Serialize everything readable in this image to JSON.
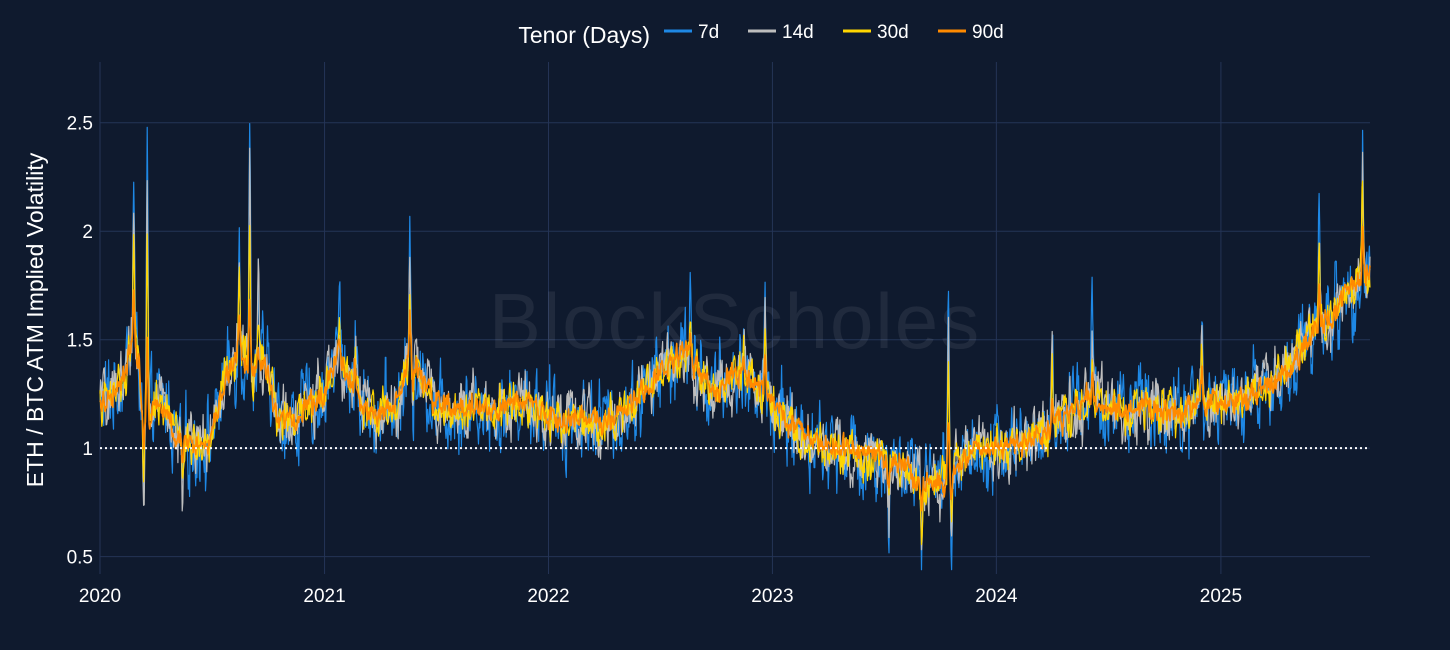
{
  "chart_data": {
    "type": "line",
    "ylabel": "ETH / BTC ATM Implied Volatility",
    "xlabel": "",
    "legend": {
      "title": "Tenor (Days)",
      "placement": "top-center",
      "orientation": "horizontal"
    },
    "watermark": "BlockScholes",
    "grid": true,
    "xlim": [
      "2020-01-01",
      "2025-09-01"
    ],
    "ylim": [
      0.42,
      2.78
    ],
    "x_ticks": [
      {
        "value": "2020-01-01",
        "label": "2020"
      },
      {
        "value": "2021-01-01",
        "label": "2021"
      },
      {
        "value": "2022-01-01",
        "label": "2022"
      },
      {
        "value": "2023-01-01",
        "label": "2023"
      },
      {
        "value": "2024-01-01",
        "label": "2024"
      },
      {
        "value": "2025-01-01",
        "label": "2025"
      }
    ],
    "y_ticks": [
      {
        "value": 0.5,
        "label": "0.5"
      },
      {
        "value": 1.0,
        "label": "1"
      },
      {
        "value": 1.5,
        "label": "1.5"
      },
      {
        "value": 2.0,
        "label": "2"
      },
      {
        "value": 2.5,
        "label": "2.5"
      }
    ],
    "reference_line": {
      "y": 1.0,
      "style": "dotted",
      "color": "#ffffff"
    },
    "series_colors": {
      "7d": "#1e88e5",
      "14d": "#bdbdbd",
      "30d": "#ffd600",
      "90d": "#ff8a00"
    },
    "series": [
      {
        "name": "7d",
        "color": "#1e88e5",
        "noise": 0.115,
        "spike_scale": 1.0
      },
      {
        "name": "14d",
        "color": "#bdbdbd",
        "noise": 0.085,
        "spike_scale": 0.85
      },
      {
        "name": "30d",
        "color": "#ffd600",
        "noise": 0.06,
        "spike_scale": 0.6
      },
      {
        "name": "90d",
        "color": "#ff8a00",
        "noise": 0.035,
        "spike_scale": 0.3
      }
    ],
    "baseline_points": [
      [
        "2020-01-01",
        1.2
      ],
      [
        "2020-01-20",
        1.25
      ],
      [
        "2020-02-10",
        1.35
      ],
      [
        "2020-02-25",
        1.5
      ],
      [
        "2020-03-05",
        1.38
      ],
      [
        "2020-03-15",
        1.1
      ],
      [
        "2020-04-01",
        1.22
      ],
      [
        "2020-04-20",
        1.2
      ],
      [
        "2020-05-01",
        1.05
      ],
      [
        "2020-06-01",
        1.0
      ],
      [
        "2020-07-01",
        1.05
      ],
      [
        "2020-07-20",
        1.3
      ],
      [
        "2020-08-15",
        1.45
      ],
      [
        "2020-09-05",
        1.35
      ],
      [
        "2020-09-25",
        1.4
      ],
      [
        "2020-10-15",
        1.15
      ],
      [
        "2020-11-15",
        1.12
      ],
      [
        "2020-12-01",
        1.2
      ],
      [
        "2021-01-01",
        1.25
      ],
      [
        "2021-01-20",
        1.45
      ],
      [
        "2021-02-15",
        1.3
      ],
      [
        "2021-03-01",
        1.2
      ],
      [
        "2021-04-01",
        1.15
      ],
      [
        "2021-05-01",
        1.2
      ],
      [
        "2021-05-20",
        1.45
      ],
      [
        "2021-06-05",
        1.35
      ],
      [
        "2021-07-01",
        1.2
      ],
      [
        "2021-08-01",
        1.18
      ],
      [
        "2021-09-01",
        1.2
      ],
      [
        "2021-10-01",
        1.17
      ],
      [
        "2021-11-01",
        1.2
      ],
      [
        "2021-12-01",
        1.22
      ],
      [
        "2022-01-01",
        1.15
      ],
      [
        "2022-02-01",
        1.12
      ],
      [
        "2022-03-01",
        1.15
      ],
      [
        "2022-04-01",
        1.12
      ],
      [
        "2022-05-01",
        1.15
      ],
      [
        "2022-06-01",
        1.25
      ],
      [
        "2022-07-01",
        1.35
      ],
      [
        "2022-08-15",
        1.45
      ],
      [
        "2022-09-10",
        1.3
      ],
      [
        "2022-10-01",
        1.25
      ],
      [
        "2022-11-01",
        1.35
      ],
      [
        "2022-12-01",
        1.3
      ],
      [
        "2023-01-01",
        1.2
      ],
      [
        "2023-02-01",
        1.1
      ],
      [
        "2023-03-01",
        1.05
      ],
      [
        "2023-04-01",
        1.0
      ],
      [
        "2023-05-01",
        1.0
      ],
      [
        "2023-06-01",
        0.95
      ],
      [
        "2023-07-01",
        0.95
      ],
      [
        "2023-08-01",
        0.9
      ],
      [
        "2023-09-01",
        0.85
      ],
      [
        "2023-10-01",
        0.83
      ],
      [
        "2023-11-01",
        0.95
      ],
      [
        "2023-12-01",
        1.0
      ],
      [
        "2024-01-01",
        1.02
      ],
      [
        "2024-02-01",
        1.0
      ],
      [
        "2024-03-01",
        1.05
      ],
      [
        "2024-04-01",
        1.08
      ],
      [
        "2024-05-01",
        1.15
      ],
      [
        "2024-06-01",
        1.25
      ],
      [
        "2024-07-01",
        1.2
      ],
      [
        "2024-08-01",
        1.15
      ],
      [
        "2024-09-01",
        1.2
      ],
      [
        "2024-10-01",
        1.17
      ],
      [
        "2024-11-01",
        1.15
      ],
      [
        "2024-12-01",
        1.22
      ],
      [
        "2025-01-01",
        1.2
      ],
      [
        "2025-02-01",
        1.22
      ],
      [
        "2025-03-01",
        1.25
      ],
      [
        "2025-04-01",
        1.3
      ],
      [
        "2025-05-01",
        1.4
      ],
      [
        "2025-06-01",
        1.55
      ],
      [
        "2025-07-01",
        1.6
      ],
      [
        "2025-08-01",
        1.75
      ],
      [
        "2025-09-01",
        1.8
      ]
    ],
    "spikes": [
      [
        "2020-02-25",
        0.75
      ],
      [
        "2020-03-18",
        1.25
      ],
      [
        "2020-08-15",
        0.55
      ],
      [
        "2020-09-01",
        1.1
      ],
      [
        "2020-09-15",
        0.45
      ],
      [
        "2021-01-25",
        0.3
      ],
      [
        "2021-02-20",
        0.35
      ],
      [
        "2021-05-20",
        0.5
      ],
      [
        "2022-08-20",
        0.25
      ],
      [
        "2022-11-15",
        0.25
      ],
      [
        "2022-12-20",
        0.5
      ],
      [
        "2023-10-15",
        0.9
      ],
      [
        "2024-04-01",
        0.5
      ],
      [
        "2024-06-05",
        0.3
      ],
      [
        "2024-12-01",
        0.45
      ],
      [
        "2025-06-10",
        0.55
      ],
      [
        "2025-08-20",
        0.7
      ]
    ],
    "dips": [
      [
        "2020-03-12",
        -0.5
      ],
      [
        "2020-05-15",
        -0.3
      ],
      [
        "2021-05-25",
        -0.35
      ],
      [
        "2023-09-01",
        -0.35
      ],
      [
        "2023-10-20",
        -0.4
      ],
      [
        "2023-07-10",
        -0.3
      ]
    ]
  }
}
